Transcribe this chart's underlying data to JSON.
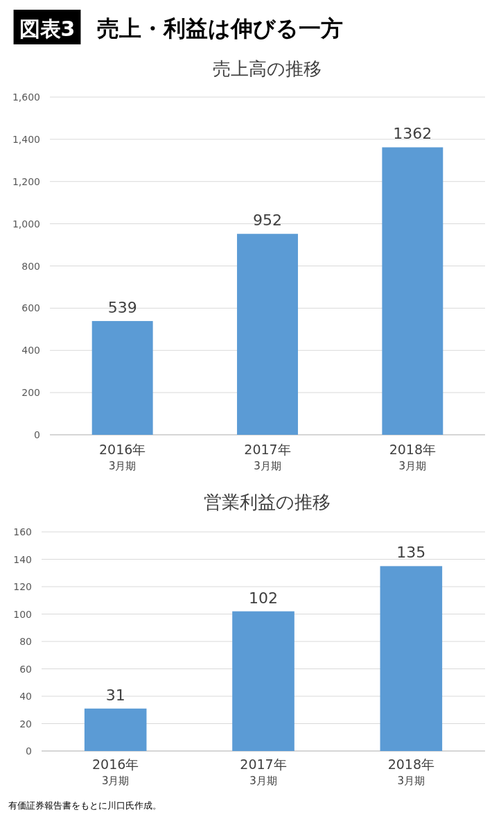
{
  "chart_data": [
    {
      "type": "bar",
      "title": "売上高の推移",
      "annotations": [
        "図表3",
        "売上・利益は伸びる一方"
      ],
      "categories": [
        "2016年\n3月期",
        "2017年\n3月期",
        "2018年\n3月期"
      ],
      "values": [
        539,
        952,
        1362
      ],
      "color": "#5b9bd5",
      "ylim": [
        0,
        1600
      ],
      "yticks": [
        {
          "value": 0,
          "label": "0"
        },
        {
          "value": 200,
          "label": "200"
        },
        {
          "value": 400,
          "label": "400"
        },
        {
          "value": 600,
          "label": "600"
        },
        {
          "value": 800,
          "label": "800"
        },
        {
          "value": 1000,
          "label": "1,000"
        },
        {
          "value": 1200,
          "label": "1,200"
        },
        {
          "value": 1400,
          "label": "1,400"
        },
        {
          "value": 1600,
          "label": "1,600"
        }
      ],
      "grid": "y",
      "data_labels": true
    },
    {
      "type": "bar",
      "title": "営業利益の推移",
      "annotations": [
        "有価証券報告書をもとに川口氏作成。"
      ],
      "categories": [
        "2016年\n3月期",
        "2017年\n3月期",
        "2018年\n3月期"
      ],
      "values": [
        31,
        102,
        135
      ],
      "color": "#5b9bd5",
      "ylim": [
        0,
        160
      ],
      "yticks": [
        0,
        20,
        40,
        60,
        80,
        100,
        120,
        140,
        160
      ],
      "grid": "y",
      "data_labels": true
    }
  ]
}
